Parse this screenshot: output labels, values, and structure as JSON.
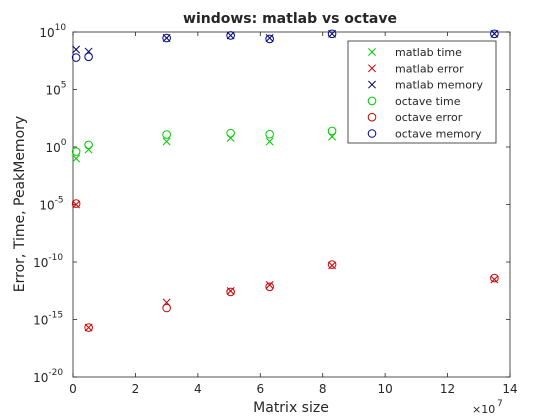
{
  "chart_data": {
    "type": "scatter",
    "title": "windows: matlab vs octave",
    "xlabel": "Matrix size",
    "ylabel": "Error, Time, PeakMemory",
    "x_multiplier_label": "×10",
    "x_multiplier_exp": "7",
    "xlim": [
      0,
      14
    ],
    "ylim_log10": [
      -20,
      10
    ],
    "y_scale": "log",
    "x_ticks": [
      {
        "value": 0,
        "label": "0"
      },
      {
        "value": 2,
        "label": "2"
      },
      {
        "value": 4,
        "label": "4"
      },
      {
        "value": 6,
        "label": "6"
      },
      {
        "value": 8,
        "label": "8"
      },
      {
        "value": 10,
        "label": "10"
      },
      {
        "value": 12,
        "label": "12"
      },
      {
        "value": 14,
        "label": "14"
      }
    ],
    "y_ticks": [
      {
        "exp": -20,
        "base": "10",
        "sup": "-20"
      },
      {
        "exp": -15,
        "base": "10",
        "sup": "-15"
      },
      {
        "exp": -10,
        "base": "10",
        "sup": "-10"
      },
      {
        "exp": -5,
        "base": "10",
        "sup": "-5"
      },
      {
        "exp": 0,
        "base": "10",
        "sup": "0"
      },
      {
        "exp": 5,
        "base": "10",
        "sup": "5"
      },
      {
        "exp": 10,
        "base": "10",
        "sup": "10"
      }
    ],
    "legend_position": "top-right",
    "grid": false,
    "series": [
      {
        "name": "matlab time",
        "marker": "x",
        "color": "#00cc00",
        "points": [
          [
            0.1,
            0.1
          ],
          [
            0.5,
            0.6
          ],
          [
            3.0,
            3.0
          ],
          [
            5.05,
            6.0
          ],
          [
            6.3,
            3.0
          ],
          [
            8.3,
            8.0
          ]
        ]
      },
      {
        "name": "matlab error",
        "marker": "x",
        "color": "#cc0000",
        "points": [
          [
            0.1,
            1e-05
          ],
          [
            0.5,
            2e-16
          ],
          [
            3.0,
            3e-14
          ],
          [
            5.05,
            3e-13
          ],
          [
            6.3,
            1e-12
          ],
          [
            8.3,
            5e-11
          ],
          [
            13.5,
            3e-12
          ]
        ]
      },
      {
        "name": "matlab memory",
        "marker": "x",
        "color": "#000066",
        "points": [
          [
            0.1,
            300000000.0
          ],
          [
            0.5,
            200000000.0
          ],
          [
            3.0,
            3000000000.0
          ],
          [
            5.05,
            5000000000.0
          ],
          [
            6.3,
            3000000000.0
          ],
          [
            8.3,
            7000000000.0
          ],
          [
            13.5,
            7000000000.0
          ]
        ]
      },
      {
        "name": "octave time",
        "marker": "o",
        "color": "#00cc00",
        "points": [
          [
            0.1,
            0.4
          ],
          [
            0.5,
            1.5
          ],
          [
            3.0,
            12.0
          ],
          [
            5.05,
            16.0
          ],
          [
            6.3,
            13.0
          ],
          [
            8.3,
            25.0
          ]
        ]
      },
      {
        "name": "octave error",
        "marker": "o",
        "color": "#cc0000",
        "points": [
          [
            0.1,
            1.2e-05
          ],
          [
            0.5,
            2e-16
          ],
          [
            3.0,
            1e-14
          ],
          [
            5.05,
            2.5e-13
          ],
          [
            6.3,
            7e-13
          ],
          [
            8.3,
            6e-11
          ],
          [
            13.5,
            4e-12
          ]
        ]
      },
      {
        "name": "octave memory",
        "marker": "o",
        "color": "#000099",
        "points": [
          [
            0.1,
            60000000.0
          ],
          [
            0.5,
            70000000.0
          ],
          [
            3.0,
            3000000000.0
          ],
          [
            5.05,
            5000000000.0
          ],
          [
            6.3,
            2500000000.0
          ],
          [
            8.3,
            7000000000.0
          ],
          [
            13.5,
            7000000000.0
          ]
        ]
      }
    ]
  }
}
